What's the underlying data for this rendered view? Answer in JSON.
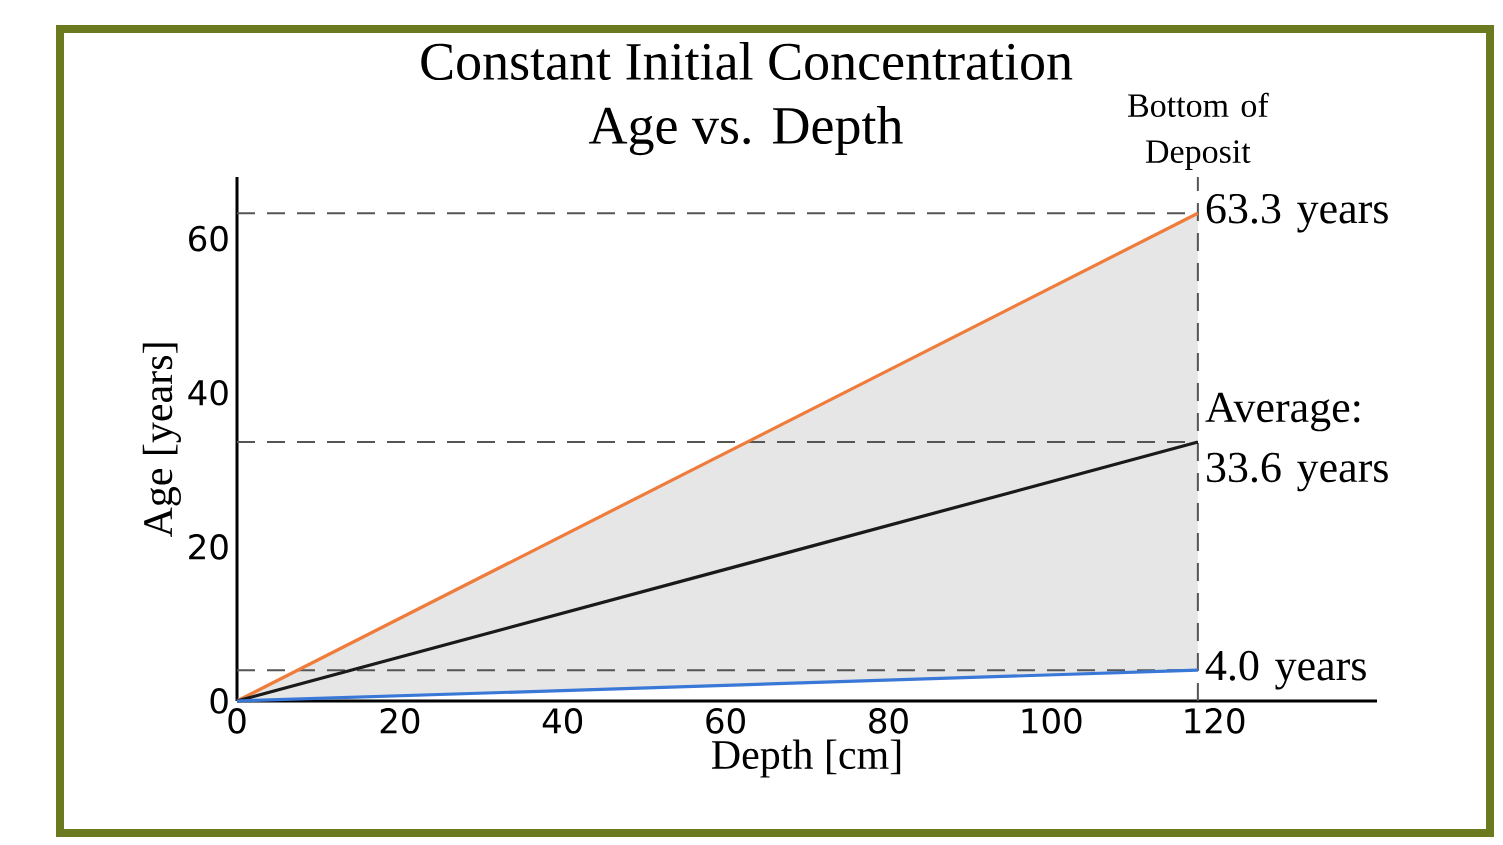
{
  "chart_data": {
    "type": "line",
    "title": "Constant Initial Concentration",
    "subtitle": "Age vs. Depth",
    "xlabel": "Depth [cm]",
    "ylabel": "Age [years]",
    "x": [
      0,
      118
    ],
    "series": [
      {
        "color": "#f07c3c",
        "values": [
          0,
          63.3
        ]
      },
      {
        "color": "#1a1a1a",
        "values": [
          0,
          33.6
        ],
        "lower": [
          0,
          4.0
        ],
        "upper": [
          0,
          63.3
        ]
      },
      {
        "color": "#3a78d8",
        "values": [
          0,
          4.0
        ]
      }
    ],
    "xlim": [
      0,
      140
    ],
    "ylim": [
      0,
      68
    ],
    "xticks": [
      0,
      20,
      40,
      60,
      80,
      100,
      120
    ],
    "yticks": [
      0,
      20,
      40,
      60
    ],
    "ref_lines": [
      {
        "axis": "y",
        "value": 63.3,
        "label": "63.3 years",
        "color": "#555555",
        "line_style": "dashed"
      },
      {
        "axis": "y",
        "value": 33.6,
        "label": "Average: 33.6 years",
        "color": "#555555",
        "line_style": "dashed"
      },
      {
        "axis": "y",
        "value": 4.0,
        "label": "4.0 years",
        "color": "#555555",
        "line_style": "dashed"
      },
      {
        "axis": "x",
        "value": 118,
        "label": "Bottom of Deposit",
        "color": "#555555",
        "line_style": "dashed"
      }
    ]
  }
}
